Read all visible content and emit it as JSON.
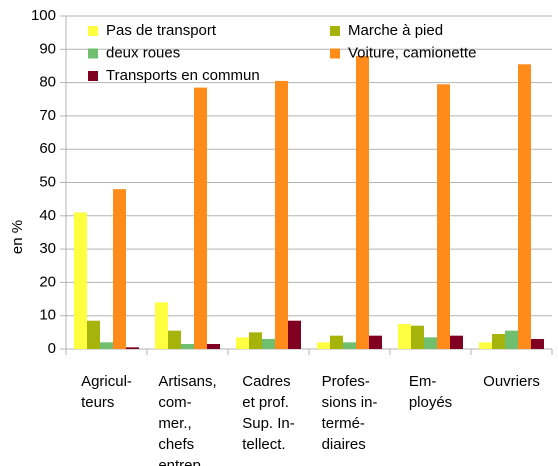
{
  "chart_data": {
    "type": "bar",
    "ylabel": "en %",
    "categories": [
      [
        "Agricul-",
        "teurs"
      ],
      [
        "Artisans,",
        "com-",
        "mer.,",
        "chefs",
        "entrep."
      ],
      [
        "Cadres",
        "et prof.",
        "Sup. In-",
        "tellect."
      ],
      [
        "Profes-",
        "sions in-",
        "termé-",
        "diaires"
      ],
      [
        "Em-",
        "ployés"
      ],
      [
        "Ouvriers"
      ]
    ],
    "series": [
      {
        "name": "Pas de transport",
        "color": "#ffff42",
        "values": [
          41,
          14,
          3.5,
          2,
          7.5,
          2
        ]
      },
      {
        "name": "Marche à pied",
        "color": "#a5b30a",
        "values": [
          8.5,
          5.5,
          5,
          4,
          7,
          4.5
        ]
      },
      {
        "name": "deux roues",
        "color": "#6fbf6f",
        "values": [
          2,
          1.5,
          3,
          2,
          3.5,
          5.5
        ]
      },
      {
        "name": "Voiture, camionette",
        "color": "#ff8c1a",
        "values": [
          48,
          78.5,
          80.5,
          88,
          79.5,
          85.5
        ]
      },
      {
        "name": "Transports en commun",
        "color": "#7f0020",
        "values": [
          0.5,
          1.5,
          8.5,
          4,
          4,
          3
        ]
      }
    ],
    "ylim": [
      0,
      100
    ],
    "yticks": [
      0,
      10,
      20,
      30,
      40,
      50,
      60,
      70,
      80,
      90,
      100
    ],
    "grid": true
  }
}
